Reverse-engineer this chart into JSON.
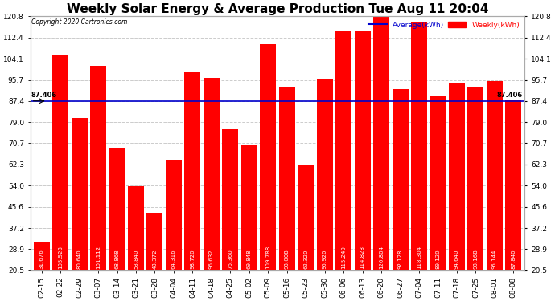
{
  "title": "Weekly Solar Energy & Average Production Tue Aug 11 20:04",
  "copyright": "Copyright 2020 Cartronics.com",
  "average_label": "Average(kWh)",
  "weekly_label": "Weekly(kWh)",
  "average_value": 87.406,
  "categories": [
    "02-15",
    "02-22",
    "02-29",
    "03-07",
    "03-14",
    "03-21",
    "03-28",
    "04-04",
    "04-11",
    "04-18",
    "04-25",
    "05-02",
    "05-09",
    "05-16",
    "05-23",
    "05-30",
    "06-06",
    "06-13",
    "06-20",
    "06-27",
    "07-04",
    "07-11",
    "07-18",
    "07-25",
    "08-01",
    "08-08"
  ],
  "values": [
    31.676,
    105.528,
    80.64,
    101.112,
    68.868,
    53.84,
    43.372,
    64.316,
    98.72,
    96.632,
    76.36,
    69.848,
    109.788,
    93.008,
    62.32,
    95.92,
    115.24,
    114.828,
    120.804,
    92.128,
    118.304,
    89.12,
    94.64,
    93.168,
    95.144,
    87.84
  ],
  "bar_color": "#ff0000",
  "avg_line_color": "#0000cc",
  "background_color": "#ffffff",
  "plot_bg_color": "#ffffff",
  "ylim_min": 20.5,
  "ylim_max": 120.8,
  "yticks": [
    20.5,
    28.9,
    37.2,
    45.6,
    54.0,
    62.3,
    70.7,
    79.0,
    87.4,
    95.7,
    104.1,
    112.4,
    120.8
  ],
  "title_fontsize": 11,
  "tick_fontsize": 6.5,
  "value_fontsize": 5.0,
  "avg_annotation": "87.406",
  "grid_color": "#cccccc",
  "border_color": "#aaaaaa"
}
